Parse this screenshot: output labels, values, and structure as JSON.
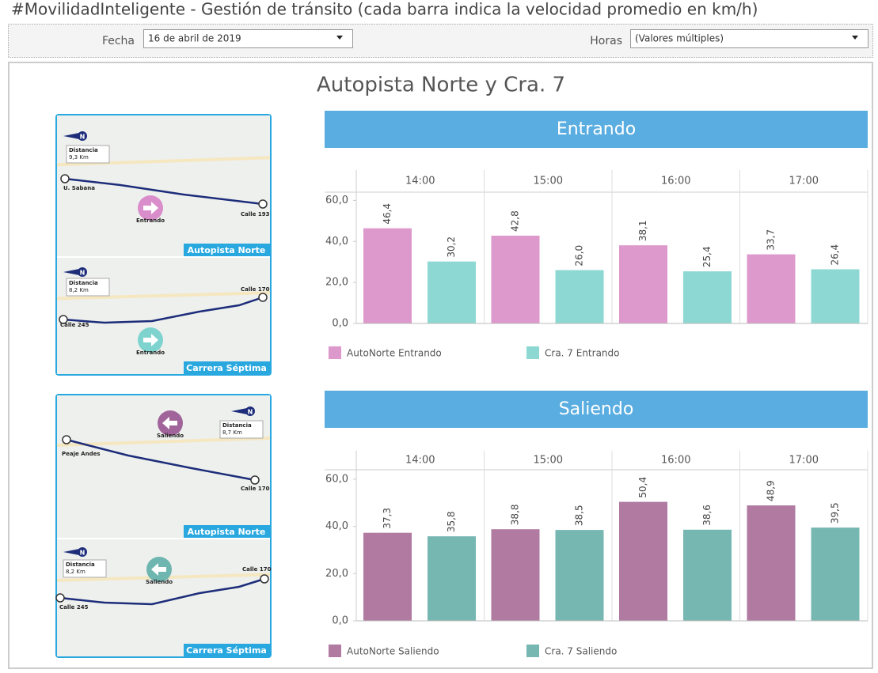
{
  "header": {
    "title": "#MovilidadInteligente - Gestión de tránsito (cada barra indica la velocidad promedio en km/h)"
  },
  "filters": [
    {
      "label": "Fecha",
      "value": "16 de abril de 2019"
    },
    {
      "label": "Horas",
      "value": "(Valores múltiples)"
    }
  ],
  "dashboard_title": "Autopista Norte y Cra. 7",
  "maps": [
    {
      "compass": "N",
      "distance_label": "Distancia",
      "distance": "9,3 Km",
      "start": "U. Sabana",
      "end": "Calle 193",
      "direction": "Entrando",
      "road": "Autopista Norte"
    },
    {
      "compass": "N",
      "distance_label": "Distancia",
      "distance": "8,2 Km",
      "start": "Calle 245",
      "end": "Calle 170",
      "direction": "Entrando",
      "road": "Carrera Séptima"
    },
    {
      "compass": "N",
      "distance_label": "Distancia",
      "distance": "8,7 Km",
      "start": "Peaje Andes",
      "end": "Calle 170",
      "direction": "Saliendo",
      "road": "Autopista Norte"
    },
    {
      "compass": "N",
      "distance_label": "Distancia",
      "distance": "8,2 Km",
      "start": "Calle 245",
      "end": "Calle 170",
      "direction": "Saliendo",
      "road": "Carrera Séptima"
    }
  ],
  "chart_data": [
    {
      "type": "bar",
      "title": "Entrando",
      "categories": [
        "14:00",
        "15:00",
        "16:00",
        "17:00"
      ],
      "series": [
        {
          "name": "AutoNorte Entrando",
          "color": "#dd99cc",
          "values": [
            46.4,
            42.8,
            38.1,
            33.7
          ],
          "value_labels": [
            "46,4",
            "42,8",
            "38,1",
            "33,7"
          ]
        },
        {
          "name": "Cra. 7 Entrando",
          "color": "#8dd8d3",
          "values": [
            30.2,
            26.0,
            25.4,
            26.4
          ],
          "value_labels": [
            "30,2",
            "26,0",
            "25,4",
            "26,4"
          ]
        }
      ],
      "ylim": [
        0,
        64
      ],
      "yticks": [
        {
          "value": 0,
          "label": "0,0"
        },
        {
          "value": 20,
          "label": "20,0"
        },
        {
          "value": 40,
          "label": "40,0"
        },
        {
          "value": 60,
          "label": "60,0"
        }
      ]
    },
    {
      "type": "bar",
      "title": "Saliendo",
      "categories": [
        "14:00",
        "15:00",
        "16:00",
        "17:00"
      ],
      "series": [
        {
          "name": "AutoNorte Saliendo",
          "color": "#b07aa1",
          "values": [
            37.3,
            38.8,
            50.4,
            48.9
          ],
          "value_labels": [
            "37,3",
            "38,8",
            "50,4",
            "48,9"
          ]
        },
        {
          "name": "Cra. 7 Saliendo",
          "color": "#76b7b2",
          "values": [
            35.8,
            38.5,
            38.6,
            39.5
          ],
          "value_labels": [
            "35,8",
            "38,5",
            "38,6",
            "39,5"
          ]
        }
      ],
      "ylim": [
        0,
        64
      ],
      "yticks": [
        {
          "value": 0,
          "label": "0,0"
        },
        {
          "value": 20,
          "label": "20,0"
        },
        {
          "value": 40,
          "label": "40,0"
        },
        {
          "value": 60,
          "label": "60,0"
        }
      ]
    }
  ]
}
